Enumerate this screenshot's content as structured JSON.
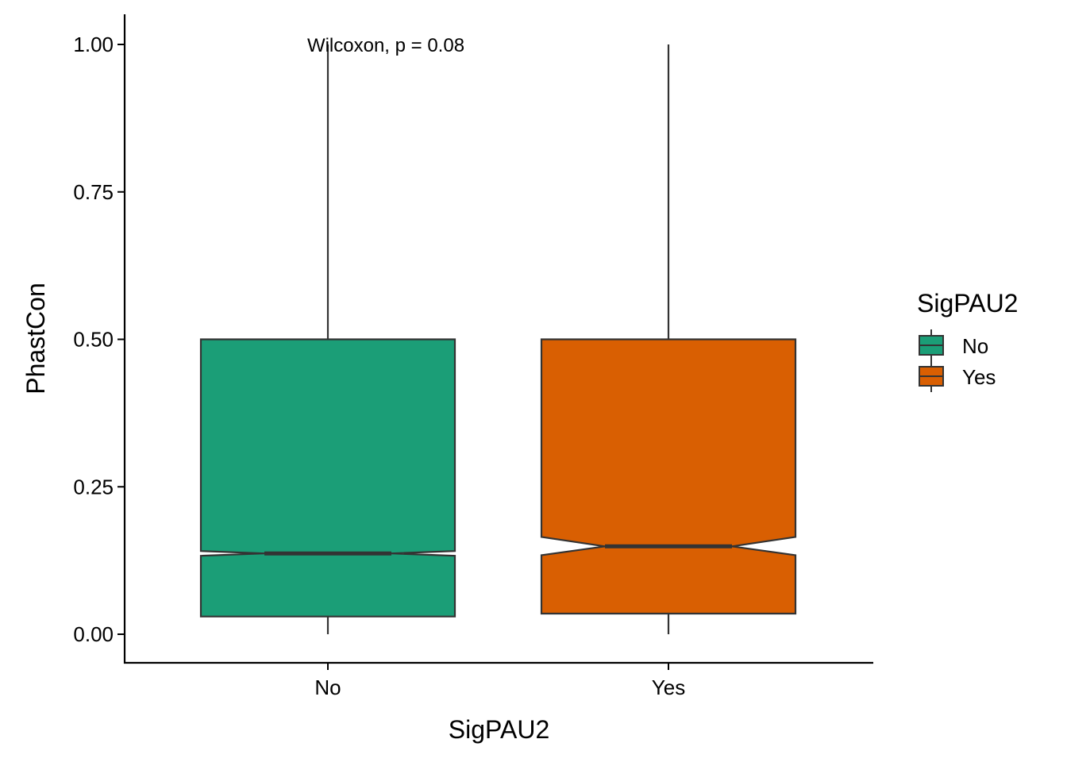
{
  "chart_data": {
    "type": "boxplot",
    "title": "",
    "xlabel": "SigPAU2",
    "ylabel": "PhastCon",
    "ylim": [
      0,
      1.05
    ],
    "yticks": [
      0.0,
      0.25,
      0.5,
      0.75,
      1.0
    ],
    "ytick_labels": [
      "0.00",
      "0.25",
      "0.50",
      "0.75",
      "1.00"
    ],
    "notched": true,
    "grid": false,
    "categories": [
      "No",
      "Yes"
    ],
    "boxes": [
      {
        "category": "No",
        "min": 0.0,
        "q1": 0.03,
        "median": 0.137,
        "q3": 0.5,
        "max": 1.0,
        "notch_low": 0.133,
        "notch_high": 0.141,
        "color": "#1B9E77"
      },
      {
        "category": "Yes",
        "min": 0.0,
        "q1": 0.035,
        "median": 0.149,
        "q3": 0.5,
        "max": 1.0,
        "notch_low": 0.134,
        "notch_high": 0.165,
        "color": "#D95F02"
      }
    ],
    "legend": {
      "title": "SigPAU2",
      "placement": "right",
      "entries": [
        {
          "label": "No",
          "color": "#1B9E77"
        },
        {
          "label": "Yes",
          "color": "#D95F02"
        }
      ]
    },
    "annotation": {
      "text": "Wilcoxon, p = 0.08",
      "x_category": "No",
      "y": 1.0
    }
  }
}
